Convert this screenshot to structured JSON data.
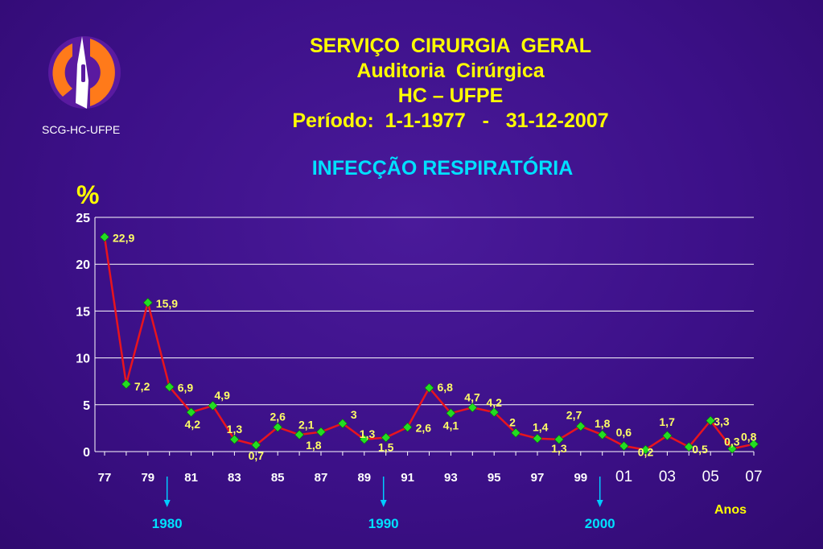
{
  "logo": {
    "caption": "SCG-HC-UFPE",
    "colors": {
      "orange": "#ff7a1a",
      "purple": "#5a1aa0",
      "white": "#ffffff"
    }
  },
  "header": {
    "lines": [
      "SERVIÇO  CIRURGIA  GERAL",
      "Auditoria  Cirúrgica",
      "HC – UFPE",
      "Período:  1-1-1977   -   31-12-2007"
    ],
    "subtitle": "INFECÇÃO  RESPIRATÓRIA"
  },
  "colors": {
    "title": "#ffff00",
    "subtitle": "#00e0ff",
    "line": "#e8141e",
    "marker": "#22dd22",
    "grid": "#ffffff",
    "axis_text": "#ffffff",
    "label": "#ffff66",
    "arrow": "#00ccff"
  },
  "chart_data": {
    "type": "line",
    "ylabel": "%",
    "xlabel": "Anos",
    "ylim": [
      0,
      25
    ],
    "yticks": [
      0,
      5,
      10,
      15,
      20,
      25
    ],
    "grid": true,
    "x": [
      1977,
      1978,
      1979,
      1980,
      1981,
      1982,
      1983,
      1984,
      1985,
      1986,
      1987,
      1988,
      1989,
      1990,
      1991,
      1992,
      1993,
      1994,
      1995,
      1996,
      1997,
      1998,
      1999,
      2000,
      2001,
      2002,
      2003,
      2004,
      2005,
      2006,
      2007
    ],
    "xtick_values": [
      1977,
      1979,
      1981,
      1983,
      1985,
      1987,
      1989,
      1991,
      1993,
      1995,
      1997,
      1999,
      2001,
      2003,
      2005,
      2007
    ],
    "xtick_labels": [
      "77",
      "79",
      "81",
      "83",
      "85",
      "87",
      "89",
      "91",
      "93",
      "95",
      "97",
      "99",
      "01",
      "03",
      "05",
      "07"
    ],
    "series": [
      {
        "values": [
          22.9,
          7.2,
          15.9,
          6.9,
          4.2,
          4.9,
          1.3,
          0.7,
          2.6,
          1.8,
          2.1,
          3,
          1.3,
          1.5,
          2.6,
          6.8,
          4.1,
          4.7,
          4.2,
          2,
          1.4,
          1.3,
          2.7,
          1.8,
          0.6,
          0.2,
          1.7,
          0.5,
          3.3,
          0.3,
          0.8
        ],
        "labels": [
          "22,9",
          "7,2",
          "15,9",
          "6,9",
          "4,2",
          "4,9",
          "1,3",
          "0,7",
          "2,6",
          "1,8",
          "2,1",
          "3",
          "1,3",
          "1,5",
          "2,6",
          "6,8",
          "4,1",
          "4,7",
          "4,2",
          "2",
          "1,4",
          "1,3",
          "2,7",
          "1,8",
          "0,6",
          "0,2",
          "1,7",
          "0,5",
          "3,3",
          "0,3",
          "0,8"
        ]
      }
    ],
    "decade_markers": [
      {
        "x": 1980,
        "label": "1980"
      },
      {
        "x": 1990,
        "label": "1990"
      },
      {
        "x": 2000,
        "label": "2000"
      }
    ]
  }
}
